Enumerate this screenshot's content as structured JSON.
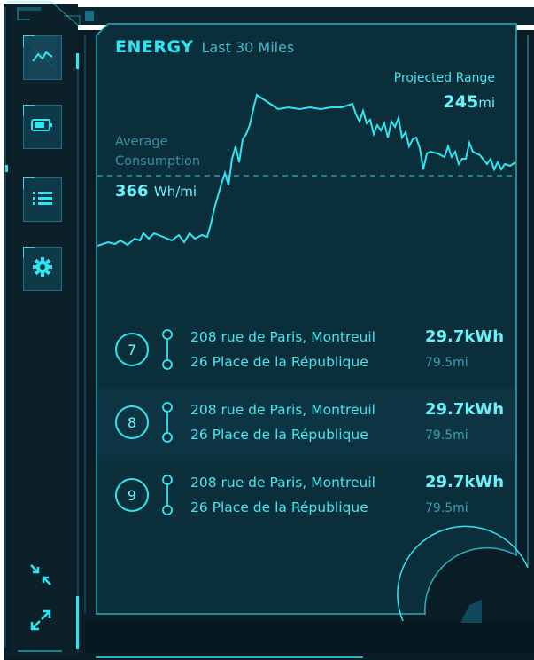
{
  "header": {
    "title": "ENERGY",
    "subtitle": "Last 30 Miles"
  },
  "projected_range": {
    "label": "Projected Range",
    "value": "245",
    "unit": "mi"
  },
  "average_consumption": {
    "label": "Average Consumption",
    "value": "366",
    "unit": "Wh/mi"
  },
  "sidebar": {
    "items": [
      {
        "name": "energy",
        "icon": "trend-chart-icon"
      },
      {
        "name": "battery",
        "icon": "battery-icon"
      },
      {
        "name": "trips",
        "icon": "list-icon"
      },
      {
        "name": "settings",
        "icon": "gear-icon"
      }
    ],
    "bottom": [
      {
        "name": "collapse",
        "icon": "collapse-arrows-icon"
      },
      {
        "name": "expand",
        "icon": "expand-arrows-icon"
      }
    ]
  },
  "trips": [
    {
      "number": "7",
      "from": "208 rue de Paris, Montreuil",
      "to": "26 Place de la République",
      "energy": "29.7kWh",
      "distance": "79.5mi"
    },
    {
      "number": "8",
      "from": "208 rue de Paris, Montreuil",
      "to": "26 Place de la République",
      "energy": "29.7kWh",
      "distance": "79.5mi"
    },
    {
      "number": "9",
      "from": "208 rue de Paris, Montreuil",
      "to": "26 Place de la République",
      "energy": "29.7kWh",
      "distance": "79.5mi"
    }
  ],
  "colors": {
    "accent": "#2ee6f2",
    "background": "#0a2a36",
    "panel": "#0b2e3b"
  }
}
